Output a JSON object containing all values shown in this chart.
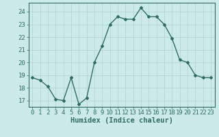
{
  "x": [
    0,
    1,
    2,
    3,
    4,
    5,
    6,
    7,
    8,
    9,
    10,
    11,
    12,
    13,
    14,
    15,
    16,
    17,
    18,
    19,
    20,
    21,
    22,
    23
  ],
  "y": [
    18.8,
    18.6,
    18.1,
    17.1,
    17.0,
    18.8,
    16.7,
    17.2,
    20.0,
    21.3,
    23.0,
    23.6,
    23.4,
    23.4,
    24.3,
    23.6,
    23.6,
    23.0,
    21.9,
    20.2,
    20.0,
    19.0,
    18.8,
    18.8
  ],
  "ylim": [
    16.5,
    24.7
  ],
  "xlim": [
    -0.5,
    23.5
  ],
  "yticks": [
    17,
    18,
    19,
    20,
    21,
    22,
    23,
    24
  ],
  "xticks": [
    0,
    1,
    2,
    3,
    4,
    5,
    6,
    7,
    8,
    9,
    10,
    11,
    12,
    13,
    14,
    15,
    16,
    17,
    18,
    19,
    20,
    21,
    22,
    23
  ],
  "xlabel": "Humidex (Indice chaleur)",
  "line_color": "#2d6e5e",
  "marker": "D",
  "marker_size": 2.0,
  "bg_color": "#cceaea",
  "grid_color_major": "#b0d0d0",
  "grid_color_minor": "#c8e6e6",
  "line_width": 1.0,
  "xlabel_fontsize": 7.5,
  "tick_fontsize": 6.5
}
